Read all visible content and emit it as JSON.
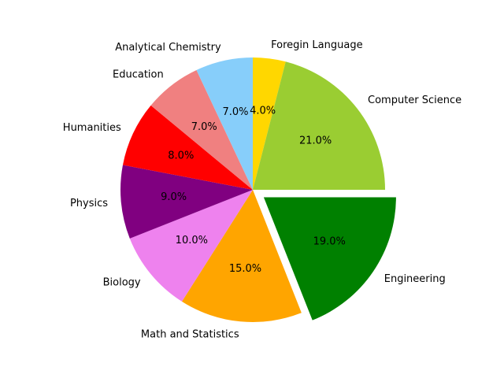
{
  "chart_data": {
    "type": "pie",
    "title": "",
    "start_angle_deg": 90,
    "direction": "clockwise",
    "slices": [
      {
        "label": "Foregin Language",
        "value": 4.0,
        "pct_label": "4.0%",
        "color": "#ffd700",
        "explode": 0
      },
      {
        "label": "Computer Science",
        "value": 21.0,
        "pct_label": "21.0%",
        "color": "#9acd32",
        "explode": 0
      },
      {
        "label": "Engineering",
        "value": 19.0,
        "pct_label": "19.0%",
        "color": "#008000",
        "explode": 0.1
      },
      {
        "label": "Math and Statistics",
        "value": 15.0,
        "pct_label": "15.0%",
        "color": "#ffa500",
        "explode": 0
      },
      {
        "label": "Biology",
        "value": 10.0,
        "pct_label": "10.0%",
        "color": "#ee82ee",
        "explode": 0
      },
      {
        "label": "Physics",
        "value": 9.0,
        "pct_label": "9.0%",
        "color": "#800080",
        "explode": 0
      },
      {
        "label": "Humanities",
        "value": 8.0,
        "pct_label": "8.0%",
        "color": "#ff0000",
        "explode": 0
      },
      {
        "label": "Education",
        "value": 7.0,
        "pct_label": "7.0%",
        "color": "#f08080",
        "explode": 0
      },
      {
        "label": "Analytical Chemistry",
        "value": 7.0,
        "pct_label": "7.0%",
        "color": "#87cefa",
        "explode": 0
      }
    ]
  }
}
